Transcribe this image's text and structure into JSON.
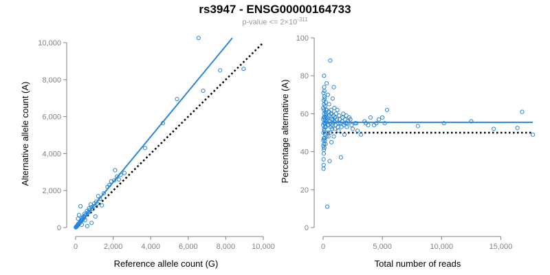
{
  "header": {
    "title": "rs3947 - ENSG00000164733",
    "subtitle_text": "p-value <= 2×10",
    "subtitle_exponent": "-311"
  },
  "colors": {
    "points": "#2b86d9",
    "fit": "#2b86d9",
    "reference": "#000000",
    "axis": "#808080"
  },
  "chart_data": [
    {
      "type": "scatter",
      "xlabel": "Reference allele count (G)",
      "ylabel": "Alternative allele count (A)",
      "xlim": [
        0,
        10000
      ],
      "ylim": [
        0,
        10000
      ],
      "xticks": [
        0,
        2000,
        4000,
        6000,
        8000,
        10000
      ],
      "xtick_labels": [
        "0",
        "2,000",
        "4,000",
        "6,000",
        "8,000",
        "10,000"
      ],
      "yticks": [
        0,
        2000,
        4000,
        6000,
        8000,
        10000
      ],
      "ytick_labels": [
        "0",
        "2,000",
        "4,000",
        "6,000",
        "8,000",
        "10,000"
      ],
      "grid": false,
      "points": [
        [
          6550,
          10250
        ],
        [
          7700,
          8500
        ],
        [
          8950,
          8580
        ],
        [
          6800,
          7400
        ],
        [
          5400,
          6950
        ],
        [
          4650,
          5650
        ],
        [
          3700,
          4300
        ],
        [
          2600,
          2950
        ],
        [
          2200,
          2750
        ],
        [
          2100,
          3100
        ],
        [
          2050,
          2550
        ],
        [
          1900,
          2500
        ],
        [
          1800,
          2300
        ],
        [
          1700,
          2200
        ],
        [
          1500,
          1850
        ],
        [
          1300,
          1550
        ],
        [
          1200,
          1700
        ],
        [
          1100,
          1400
        ],
        [
          1000,
          1300
        ],
        [
          950,
          1150
        ],
        [
          900,
          1000
        ],
        [
          850,
          1100
        ],
        [
          800,
          1250
        ],
        [
          750,
          950
        ],
        [
          700,
          850
        ],
        [
          650,
          800
        ],
        [
          600,
          900
        ],
        [
          550,
          700
        ],
        [
          500,
          650
        ],
        [
          480,
          750
        ],
        [
          450,
          550
        ],
        [
          420,
          600
        ],
        [
          400,
          500
        ],
        [
          380,
          450
        ],
        [
          350,
          520
        ],
        [
          320,
          400
        ],
        [
          300,
          380
        ],
        [
          280,
          330
        ],
        [
          260,
          350
        ],
        [
          240,
          300
        ],
        [
          220,
          260
        ],
        [
          200,
          250
        ],
        [
          180,
          220
        ],
        [
          160,
          190
        ],
        [
          150,
          210
        ],
        [
          140,
          170
        ],
        [
          130,
          140
        ],
        [
          120,
          150
        ],
        [
          110,
          120
        ],
        [
          100,
          130
        ],
        [
          90,
          100
        ],
        [
          80,
          95
        ],
        [
          70,
          90
        ],
        [
          60,
          70
        ],
        [
          55,
          60
        ],
        [
          50,
          65
        ],
        [
          40,
          45
        ],
        [
          35,
          40
        ],
        [
          30,
          35
        ],
        [
          25,
          30
        ],
        [
          20,
          22
        ],
        [
          15,
          18
        ],
        [
          10,
          12
        ],
        [
          260,
          1150
        ],
        [
          180,
          680
        ],
        [
          850,
          250
        ],
        [
          620,
          80
        ],
        [
          500,
          400
        ],
        [
          720,
          1050
        ],
        [
          1050,
          600
        ],
        [
          1150,
          1300
        ],
        [
          1400,
          1200
        ],
        [
          330,
          150
        ],
        [
          130,
          480
        ],
        [
          2400,
          2850
        ],
        [
          2300,
          2600
        ]
      ],
      "fit_line": [
        [
          0,
          0
        ],
        [
          8350,
          10250
        ]
      ],
      "reference_line": [
        [
          0,
          0
        ],
        [
          10000,
          10000
        ]
      ]
    },
    {
      "type": "scatter",
      "xlabel": "Total number of reads",
      "ylabel": "Percentage alternative (A)",
      "xlim": [
        0,
        17700
      ],
      "ylim": [
        0,
        100
      ],
      "xticks": [
        0,
        5000,
        10000,
        15000
      ],
      "xtick_labels": [
        "0",
        "5,000",
        "10,000",
        "15,000"
      ],
      "yticks": [
        0,
        20,
        40,
        60,
        80,
        100
      ],
      "ytick_labels": [
        "0",
        "20",
        "40",
        "60",
        "80",
        "100"
      ],
      "grid": false,
      "points": [
        [
          16800,
          61
        ],
        [
          17700,
          49
        ],
        [
          16400,
          52.5
        ],
        [
          14400,
          52
        ],
        [
          12500,
          56
        ],
        [
          10200,
          55
        ],
        [
          8000,
          53.5
        ],
        [
          5200,
          55
        ],
        [
          5000,
          58
        ],
        [
          5400,
          62
        ],
        [
          4700,
          57
        ],
        [
          4500,
          55
        ],
        [
          4300,
          54
        ],
        [
          4000,
          58
        ],
        [
          3800,
          54
        ],
        [
          3500,
          56
        ],
        [
          3200,
          49
        ],
        [
          2900,
          51
        ],
        [
          2700,
          55
        ],
        [
          2500,
          52
        ],
        [
          2300,
          57
        ],
        [
          2100,
          56
        ],
        [
          1900,
          55
        ],
        [
          1800,
          49
        ],
        [
          1700,
          60
        ],
        [
          1500,
          37
        ],
        [
          1400,
          57
        ],
        [
          1300,
          55
        ],
        [
          1200,
          62
        ],
        [
          1100,
          60
        ],
        [
          1000,
          58
        ],
        [
          950,
          63
        ],
        [
          900,
          74
        ],
        [
          850,
          55
        ],
        [
          800,
          68
        ],
        [
          750,
          52
        ],
        [
          700,
          45
        ],
        [
          650,
          60
        ],
        [
          600,
          88
        ],
        [
          550,
          35
        ],
        [
          500,
          65
        ],
        [
          450,
          54
        ],
        [
          400,
          70
        ],
        [
          350,
          11
        ],
        [
          300,
          76
        ],
        [
          280,
          48
        ],
        [
          260,
          62
        ],
        [
          240,
          56
        ],
        [
          220,
          66
        ],
        [
          200,
          59
        ],
        [
          180,
          49
        ],
        [
          160,
          57
        ],
        [
          150,
          64
        ],
        [
          140,
          53
        ],
        [
          130,
          68
        ],
        [
          120,
          47
        ],
        [
          110,
          72
        ],
        [
          100,
          51
        ],
        [
          90,
          60
        ],
        [
          80,
          80
        ],
        [
          70,
          44
        ],
        [
          65,
          62
        ],
        [
          60,
          55
        ],
        [
          55,
          39
        ],
        [
          50,
          67
        ],
        [
          45,
          58
        ],
        [
          40,
          33
        ],
        [
          35,
          50
        ],
        [
          30,
          71
        ],
        [
          25,
          46
        ],
        [
          20,
          57
        ],
        [
          15,
          63
        ],
        [
          10,
          54
        ],
        [
          100,
          42
        ],
        [
          200,
          44
        ],
        [
          300,
          62
        ],
        [
          450,
          48
        ],
        [
          700,
          57
        ],
        [
          1000,
          52
        ],
        [
          1300,
          51
        ],
        [
          1600,
          56
        ],
        [
          2000,
          53
        ],
        [
          2400,
          54
        ],
        [
          2800,
          55
        ],
        [
          3600,
          55
        ],
        [
          900,
          48
        ],
        [
          600,
          50
        ],
        [
          400,
          58
        ],
        [
          250,
          60
        ],
        [
          150,
          46
        ],
        [
          80,
          52
        ],
        [
          60,
          41
        ],
        [
          40,
          36
        ],
        [
          30,
          31
        ],
        [
          20,
          43
        ],
        [
          50,
          47
        ],
        [
          70,
          65
        ],
        [
          90,
          74
        ],
        [
          110,
          69
        ],
        [
          130,
          58
        ],
        [
          170,
          55
        ],
        [
          190,
          61
        ],
        [
          230,
          53
        ],
        [
          270,
          58
        ],
        [
          320,
          57
        ],
        [
          380,
          54
        ],
        [
          420,
          50
        ],
        [
          480,
          61
        ],
        [
          520,
          59
        ],
        [
          580,
          56
        ],
        [
          640,
          53
        ],
        [
          680,
          62
        ],
        [
          740,
          60
        ],
        [
          780,
          54
        ],
        [
          820,
          57
        ],
        [
          880,
          59
        ],
        [
          940,
          56
        ],
        [
          1050,
          54
        ],
        [
          1150,
          57
        ],
        [
          1250,
          53
        ],
        [
          1350,
          59
        ],
        [
          1450,
          55
        ],
        [
          1550,
          53
        ],
        [
          1650,
          58
        ],
        [
          1750,
          54
        ],
        [
          1850,
          57
        ],
        [
          1950,
          59
        ],
        [
          2050,
          55
        ],
        [
          2200,
          58
        ]
      ],
      "fit_line": [
        [
          0,
          55.5
        ],
        [
          17700,
          55.5
        ]
      ],
      "reference_line": [
        [
          0,
          50
        ],
        [
          17700,
          50
        ]
      ]
    }
  ]
}
